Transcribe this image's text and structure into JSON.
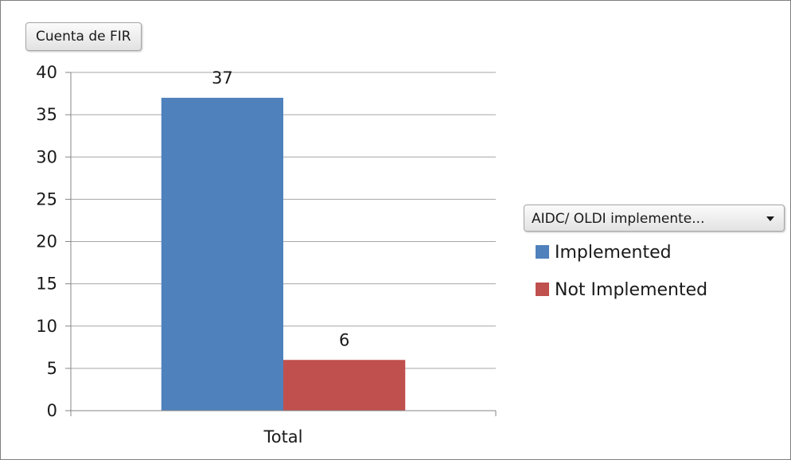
{
  "field_button": {
    "label": "Cuenta de FIR"
  },
  "legend": {
    "filter_label": "AIDC/ OLDI implemente...",
    "items": [
      {
        "label": "Implemented",
        "color": "#4f81bd"
      },
      {
        "label": "Not Implemented",
        "color": "#c0504d"
      }
    ]
  },
  "chart_data": {
    "type": "bar",
    "categories": [
      "Total"
    ],
    "series": [
      {
        "name": "Implemented",
        "values": [
          37
        ],
        "color": "#4f81bd"
      },
      {
        "name": "Not Implemented",
        "values": [
          6
        ],
        "color": "#c0504d"
      }
    ],
    "data_labels": [
      "37",
      "6"
    ],
    "ylim": [
      0,
      40
    ],
    "yticks": [
      0,
      5,
      10,
      15,
      20,
      25,
      30,
      35,
      40
    ],
    "grid": true,
    "legend_position": "right"
  }
}
